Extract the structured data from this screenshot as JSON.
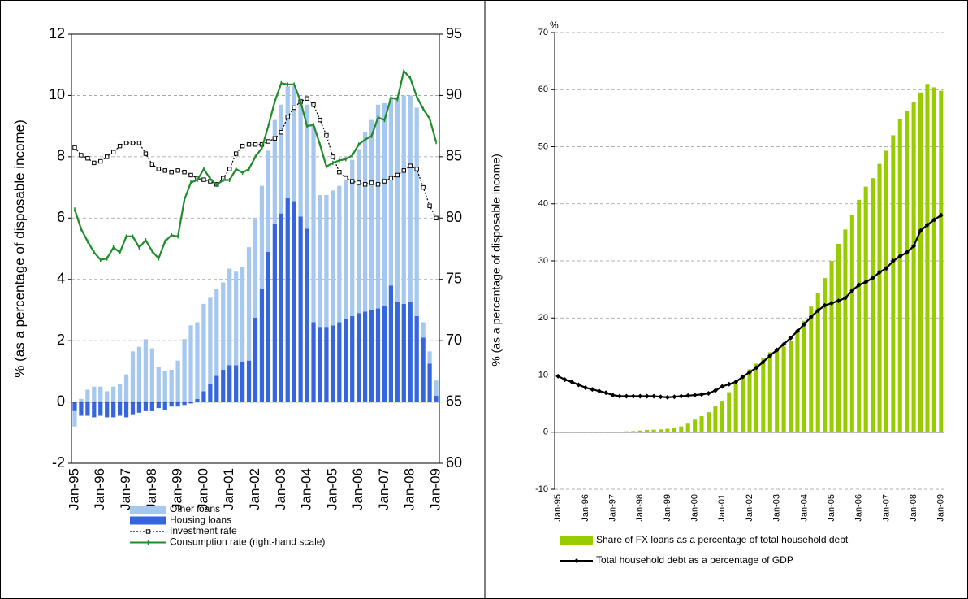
{
  "chart_data": [
    {
      "type": "bar",
      "stacked": true,
      "ylabel": "% (as a percentage of disposable income)",
      "categories": [
        "Jan-95",
        null,
        null,
        null,
        "Jan-96",
        null,
        null,
        null,
        "Jan-97",
        null,
        null,
        null,
        "Jan-98",
        null,
        null,
        null,
        "Jan-99",
        null,
        null,
        null,
        "Jan-00",
        null,
        null,
        null,
        "Jan-01",
        null,
        null,
        null,
        "Jan-02",
        null,
        null,
        null,
        "Jan-03",
        null,
        null,
        null,
        "Jan-04",
        null,
        null,
        null,
        "Jan-05",
        null,
        null,
        null,
        "Jan-06",
        null,
        null,
        null,
        "Jan-07",
        null,
        null,
        null,
        "Jan-08",
        null,
        null,
        null,
        "Jan-09"
      ],
      "series": [
        {
          "name": "Other loans",
          "type": "bar",
          "color": "#a6c8ee",
          "values": [
            -0.5,
            0.1,
            0.4,
            0.5,
            0.5,
            0.35,
            0.5,
            0.6,
            0.9,
            1.65,
            1.8,
            2.05,
            1.75,
            1.15,
            1.0,
            1.05,
            1.35,
            2.05,
            2.5,
            2.5,
            2.85,
            2.8,
            2.85,
            2.85,
            3.15,
            3.05,
            3.1,
            3.7,
            3.2,
            3.35,
            3.3,
            3.4,
            3.55,
            3.65,
            3.75,
            3.85,
            4.05,
            6.4,
            4.3,
            4.3,
            4.4,
            4.45,
            4.7,
            5.1,
            5.35,
            5.85,
            6.2,
            6.65,
            6.6,
            6.1,
            6.7,
            6.8,
            6.75,
            6.8,
            0.5,
            0.4,
            0.5
          ]
        },
        {
          "name": "Housing loans",
          "type": "bar",
          "color": "#3566e0",
          "values": [
            -0.3,
            -0.45,
            -0.45,
            -0.5,
            -0.45,
            -0.5,
            -0.5,
            -0.45,
            -0.5,
            -0.4,
            -0.35,
            -0.3,
            -0.3,
            -0.2,
            -0.25,
            -0.15,
            -0.15,
            -0.1,
            -0.05,
            0.1,
            0.35,
            0.6,
            0.85,
            1.05,
            1.2,
            1.2,
            1.3,
            1.35,
            2.75,
            3.7,
            4.9,
            5.8,
            6.15,
            6.65,
            6.55,
            6.05,
            5.65,
            2.6,
            2.45,
            2.45,
            2.5,
            2.6,
            2.7,
            2.8,
            2.9,
            2.95,
            3.0,
            3.05,
            3.15,
            3.8,
            3.25,
            3.2,
            3.25,
            2.8,
            2.1,
            1.25,
            0.2
          ]
        },
        {
          "name": "Investment rate",
          "type": "line",
          "color": "#000000",
          "style": "dotted",
          "marker": "square",
          "values": [
            8.3,
            8.05,
            7.95,
            7.8,
            7.85,
            8.0,
            8.15,
            8.35,
            8.45,
            8.45,
            8.45,
            8.1,
            7.75,
            7.6,
            7.55,
            7.5,
            7.55,
            7.5,
            7.4,
            7.3,
            7.25,
            7.2,
            7.1,
            7.3,
            7.6,
            8.1,
            8.35,
            8.4,
            8.4,
            8.4,
            8.5,
            8.6,
            8.8,
            9.3,
            9.6,
            9.8,
            9.9,
            9.7,
            9.2,
            8.7,
            8.0,
            7.5,
            7.3,
            7.2,
            7.15,
            7.1,
            7.15,
            7.1,
            7.2,
            7.3,
            7.4,
            7.55,
            7.7,
            7.6,
            7.0,
            6.4,
            6.0
          ]
        },
        {
          "name": "Consumption rate (right-hand scale)",
          "type": "line",
          "axis": "y2",
          "color": "#1f8c2a",
          "style": "solid",
          "marker": "tick",
          "values": [
            80.7,
            79.1,
            78.1,
            77.2,
            76.6,
            76.7,
            77.6,
            77.2,
            78.5,
            78.5,
            77.6,
            78.2,
            77.3,
            76.7,
            78.1,
            78.6,
            78.5,
            81.5,
            82.9,
            83.1,
            84.0,
            83.2,
            82.7,
            83.1,
            83.1,
            84.0,
            83.7,
            84.0,
            85.0,
            85.7,
            87.5,
            89.5,
            91.0,
            90.9,
            90.9,
            89.5,
            87.5,
            87.6,
            86.0,
            84.2,
            84.5,
            84.7,
            84.8,
            85.1,
            86.0,
            86.4,
            86.7,
            88.2,
            88.0,
            89.8,
            89.7,
            92.0,
            91.4,
            89.9,
            88.9,
            88.1,
            86.2
          ]
        }
      ],
      "ylim": [
        -2,
        12
      ],
      "yticks": [
        -2,
        0,
        2,
        4,
        6,
        8,
        10,
        12
      ],
      "y2lim": [
        60,
        95
      ],
      "y2ticks": [
        60,
        65,
        70,
        75,
        80,
        85,
        90,
        95
      ],
      "grid": true,
      "legend": "bottom"
    },
    {
      "type": "bar",
      "ylabel": "% (as a percentage of disposable income)",
      "unit": "%",
      "categories": [
        "Jan-95",
        null,
        null,
        null,
        "Jan-96",
        null,
        null,
        null,
        "Jan-97",
        null,
        null,
        null,
        "Jan-98",
        null,
        null,
        null,
        "Jan-99",
        null,
        null,
        null,
        "Jan-00",
        null,
        null,
        null,
        "Jan-01",
        null,
        null,
        null,
        "Jan-02",
        null,
        null,
        null,
        "Jan-03",
        null,
        null,
        null,
        "Jan-04",
        null,
        null,
        null,
        "Jan-05",
        null,
        null,
        null,
        "Jan-06",
        null,
        null,
        null,
        "Jan-07",
        null,
        null,
        null,
        "Jan-08",
        null,
        null,
        null,
        "Jan-09"
      ],
      "series": [
        {
          "name": "Share of FX loans as a percentage of total household debt",
          "type": "bar",
          "color": "#99cc00",
          "values": [
            null,
            null,
            null,
            null,
            null,
            null,
            null,
            null,
            null,
            0.1,
            0.15,
            0.2,
            0.3,
            0.4,
            0.45,
            0.5,
            0.6,
            0.8,
            1.0,
            1.5,
            2.2,
            2.8,
            3.5,
            4.5,
            5.5,
            7.0,
            8.5,
            10.0,
            11.0,
            12.0,
            13.0,
            14.0,
            14.5,
            15.0,
            16.0,
            17.5,
            19.5,
            22.0,
            24.3,
            27.0,
            30.0,
            33.0,
            35.5,
            38.0,
            40.7,
            43.0,
            44.5,
            47.0,
            49.3,
            52.0,
            54.8,
            56.3,
            57.8,
            59.5,
            61.0,
            60.4,
            59.8
          ]
        },
        {
          "name": "Total household debt as a percentage of GDP",
          "type": "line",
          "color": "#000000",
          "style": "solid",
          "marker": "diamond",
          "values": [
            9.8,
            9.2,
            8.8,
            8.3,
            7.8,
            7.5,
            7.2,
            6.9,
            6.5,
            6.3,
            6.3,
            6.3,
            6.3,
            6.3,
            6.3,
            6.2,
            6.1,
            6.2,
            6.3,
            6.4,
            6.5,
            6.6,
            6.8,
            7.3,
            8.0,
            8.4,
            8.8,
            9.7,
            10.5,
            11.3,
            12.3,
            13.4,
            14.4,
            15.4,
            16.5,
            17.7,
            18.9,
            20.2,
            21.3,
            22.2,
            22.6,
            23.0,
            23.5,
            24.8,
            25.8,
            26.3,
            27.0,
            28.0,
            28.7,
            30.0,
            30.8,
            31.5,
            32.6,
            35.3,
            36.3,
            37.2,
            38.0
          ]
        }
      ],
      "ylim": [
        -10,
        70
      ],
      "yticks": [
        -10,
        0,
        10,
        20,
        30,
        40,
        50,
        60,
        70
      ],
      "grid": true,
      "legend": "bottom"
    }
  ]
}
